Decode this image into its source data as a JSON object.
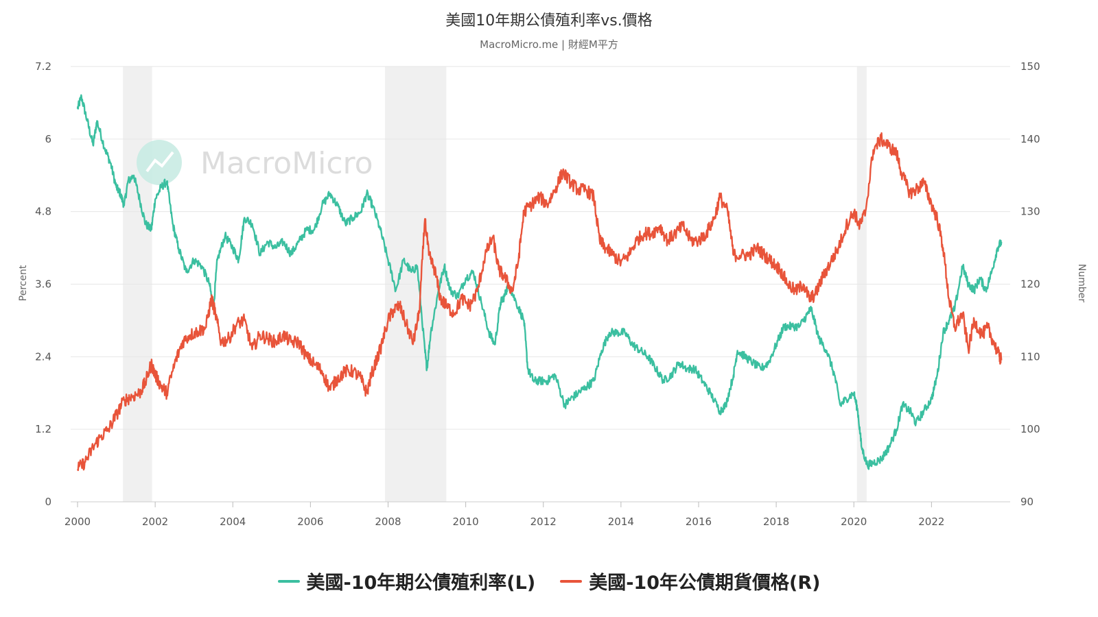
{
  "chart_data": {
    "type": "line",
    "title": "美國10年期公債殖利率vs.價格",
    "subtitle": "MacroMicro.me | 財經M平方",
    "watermark": "MacroMicro",
    "ylabel_left": "Percent",
    "ylabel_right": "Number",
    "ylim_left": [
      0,
      7.2
    ],
    "ylim_right": [
      90,
      150
    ],
    "yticks_left": [
      "0",
      "1.2",
      "2.4",
      "3.6",
      "4.8",
      "6",
      "7.2"
    ],
    "yticks_right": [
      "90",
      "100",
      "110",
      "120",
      "130",
      "140",
      "150"
    ],
    "xlim": [
      2000,
      2023.85
    ],
    "xticks": [
      "2000",
      "2002",
      "2004",
      "2006",
      "2008",
      "2010",
      "2012",
      "2014",
      "2016",
      "2018",
      "2020",
      "2022"
    ],
    "grid": true,
    "legend_position": "bottom",
    "recessions": [
      [
        2001.17,
        2001.92
      ],
      [
        2007.92,
        2009.5
      ],
      [
        2020.08,
        2020.33
      ]
    ],
    "series": [
      {
        "name": "美國-10年期公債殖利率(L)",
        "axis": "left",
        "color": "#3bbfa0",
        "x": [
          2000.0,
          2000.1,
          2000.25,
          2000.4,
          2000.5,
          2000.7,
          2000.85,
          2001.0,
          2001.1,
          2001.2,
          2001.3,
          2001.45,
          2001.6,
          2001.75,
          2001.9,
          2002.0,
          2002.15,
          2002.3,
          2002.45,
          2002.6,
          2002.8,
          2003.0,
          2003.2,
          2003.4,
          2003.5,
          2003.6,
          2003.8,
          2004.0,
          2004.15,
          2004.3,
          2004.5,
          2004.7,
          2004.9,
          2005.1,
          2005.3,
          2005.5,
          2005.7,
          2005.9,
          2006.1,
          2006.3,
          2006.5,
          2006.7,
          2006.9,
          2007.1,
          2007.3,
          2007.45,
          2007.6,
          2007.8,
          2008.0,
          2008.2,
          2008.4,
          2008.6,
          2008.75,
          2008.95,
          2009.0,
          2009.1,
          2009.3,
          2009.45,
          2009.6,
          2009.8,
          2010.0,
          2010.2,
          2010.4,
          2010.6,
          2010.75,
          2010.9,
          2011.0,
          2011.1,
          2011.3,
          2011.5,
          2011.6,
          2011.75,
          2011.9,
          2012.1,
          2012.3,
          2012.55,
          2012.7,
          2012.9,
          2013.1,
          2013.3,
          2013.5,
          2013.7,
          2013.9,
          2014.1,
          2014.3,
          2014.5,
          2014.7,
          2014.9,
          2015.1,
          2015.3,
          2015.5,
          2015.7,
          2015.9,
          2016.1,
          2016.3,
          2016.55,
          2016.7,
          2016.9,
          2017.0,
          2017.2,
          2017.4,
          2017.6,
          2017.8,
          2018.0,
          2018.2,
          2018.4,
          2018.6,
          2018.8,
          2018.9,
          2019.1,
          2019.3,
          2019.5,
          2019.65,
          2019.8,
          2020.0,
          2020.1,
          2020.2,
          2020.35,
          2020.5,
          2020.7,
          2020.9,
          2021.1,
          2021.25,
          2021.45,
          2021.6,
          2021.8,
          2022.0,
          2022.15,
          2022.3,
          2022.45,
          2022.6,
          2022.8,
          2022.95,
          2023.1,
          2023.25,
          2023.4,
          2023.55,
          2023.7,
          2023.8
        ],
        "y": [
          6.5,
          6.7,
          6.3,
          5.9,
          6.3,
          5.85,
          5.6,
          5.2,
          5.1,
          4.9,
          5.3,
          5.4,
          5.0,
          4.6,
          4.5,
          5.0,
          5.2,
          5.3,
          4.6,
          4.2,
          3.8,
          4.0,
          3.9,
          3.6,
          3.2,
          4.0,
          4.4,
          4.2,
          4.0,
          4.7,
          4.6,
          4.1,
          4.3,
          4.2,
          4.3,
          4.1,
          4.3,
          4.5,
          4.5,
          4.9,
          5.1,
          4.9,
          4.6,
          4.7,
          4.8,
          5.1,
          4.9,
          4.5,
          4.0,
          3.5,
          4.0,
          3.8,
          3.9,
          2.5,
          2.2,
          2.8,
          3.5,
          3.9,
          3.5,
          3.4,
          3.7,
          3.8,
          3.3,
          2.8,
          2.6,
          3.3,
          3.4,
          3.6,
          3.3,
          3.0,
          2.2,
          2.0,
          2.0,
          2.0,
          2.1,
          1.6,
          1.7,
          1.8,
          1.9,
          2.0,
          2.5,
          2.8,
          2.8,
          2.8,
          2.6,
          2.5,
          2.4,
          2.2,
          2.0,
          2.1,
          2.3,
          2.2,
          2.2,
          2.0,
          1.8,
          1.5,
          1.6,
          2.1,
          2.5,
          2.4,
          2.3,
          2.2,
          2.3,
          2.6,
          2.9,
          2.9,
          2.9,
          3.1,
          3.2,
          2.7,
          2.5,
          2.1,
          1.6,
          1.7,
          1.8,
          1.5,
          0.9,
          0.6,
          0.65,
          0.7,
          0.9,
          1.2,
          1.6,
          1.5,
          1.3,
          1.5,
          1.7,
          2.1,
          2.8,
          3.0,
          3.2,
          3.9,
          3.6,
          3.5,
          3.7,
          3.5,
          3.8,
          4.2,
          4.3
        ]
      },
      {
        "name": "美國-10年公債期貨價格(R)",
        "axis": "right",
        "color": "#e8543a",
        "x": [
          2000.0,
          2000.2,
          2000.4,
          2000.6,
          2000.8,
          2001.0,
          2001.2,
          2001.4,
          2001.6,
          2001.75,
          2001.9,
          2002.0,
          2002.15,
          2002.3,
          2002.5,
          2002.7,
          2002.9,
          2003.1,
          2003.3,
          2003.45,
          2003.55,
          2003.7,
          2003.9,
          2004.1,
          2004.3,
          2004.5,
          2004.7,
          2004.9,
          2005.1,
          2005.3,
          2005.5,
          2005.7,
          2005.9,
          2006.1,
          2006.3,
          2006.5,
          2006.7,
          2006.9,
          2007.1,
          2007.3,
          2007.45,
          2007.6,
          2007.8,
          2008.0,
          2008.15,
          2008.3,
          2008.5,
          2008.65,
          2008.8,
          2008.95,
          2009.05,
          2009.2,
          2009.35,
          2009.5,
          2009.7,
          2009.9,
          2010.1,
          2010.3,
          2010.5,
          2010.7,
          2010.85,
          2011.0,
          2011.2,
          2011.35,
          2011.5,
          2011.7,
          2011.9,
          2012.1,
          2012.3,
          2012.5,
          2012.7,
          2012.9,
          2013.1,
          2013.3,
          2013.45,
          2013.6,
          2013.8,
          2014.0,
          2014.2,
          2014.4,
          2014.6,
          2014.8,
          2015.0,
          2015.2,
          2015.4,
          2015.6,
          2015.8,
          2016.0,
          2016.2,
          2016.4,
          2016.55,
          2016.75,
          2016.9,
          2017.1,
          2017.3,
          2017.5,
          2017.7,
          2017.9,
          2018.1,
          2018.3,
          2018.5,
          2018.7,
          2018.85,
          2019.0,
          2019.2,
          2019.4,
          2019.6,
          2019.8,
          2020.0,
          2020.15,
          2020.3,
          2020.5,
          2020.7,
          2020.9,
          2021.1,
          2021.25,
          2021.45,
          2021.6,
          2021.8,
          2022.0,
          2022.15,
          2022.3,
          2022.45,
          2022.6,
          2022.8,
          2022.95,
          2023.1,
          2023.3,
          2023.45,
          2023.6,
          2023.75,
          2023.8
        ],
        "y": [
          94.5,
          95.5,
          97.5,
          99,
          100,
          102,
          104,
          104.5,
          105,
          106.5,
          109,
          107.5,
          106,
          105,
          109,
          112,
          113,
          113.5,
          114,
          118,
          116,
          112,
          112.5,
          114.5,
          115,
          111,
          113,
          112.5,
          112,
          113,
          112,
          112,
          110,
          109,
          108,
          105.5,
          107,
          108,
          108,
          107,
          105,
          108,
          111,
          115,
          116.5,
          117,
          114,
          112,
          116,
          129,
          124,
          122,
          118,
          117,
          116,
          118,
          117,
          119,
          124,
          126.5,
          122,
          121,
          119,
          123,
          130,
          131,
          132,
          131,
          133,
          135.5,
          134,
          133,
          133,
          132,
          126,
          125,
          124,
          123,
          124,
          126,
          127,
          127,
          128,
          126,
          127,
          128,
          126,
          126,
          127,
          129,
          132,
          130,
          124,
          124,
          124,
          125,
          124,
          123,
          122,
          120,
          119,
          120,
          118,
          118.5,
          121,
          123,
          125,
          128,
          130,
          128,
          130,
          138.5,
          140,
          139,
          138,
          135,
          132.5,
          133,
          134,
          131,
          129,
          125,
          118,
          114,
          116,
          111,
          115,
          113,
          114,
          112,
          110,
          109.5
        ]
      }
    ]
  }
}
